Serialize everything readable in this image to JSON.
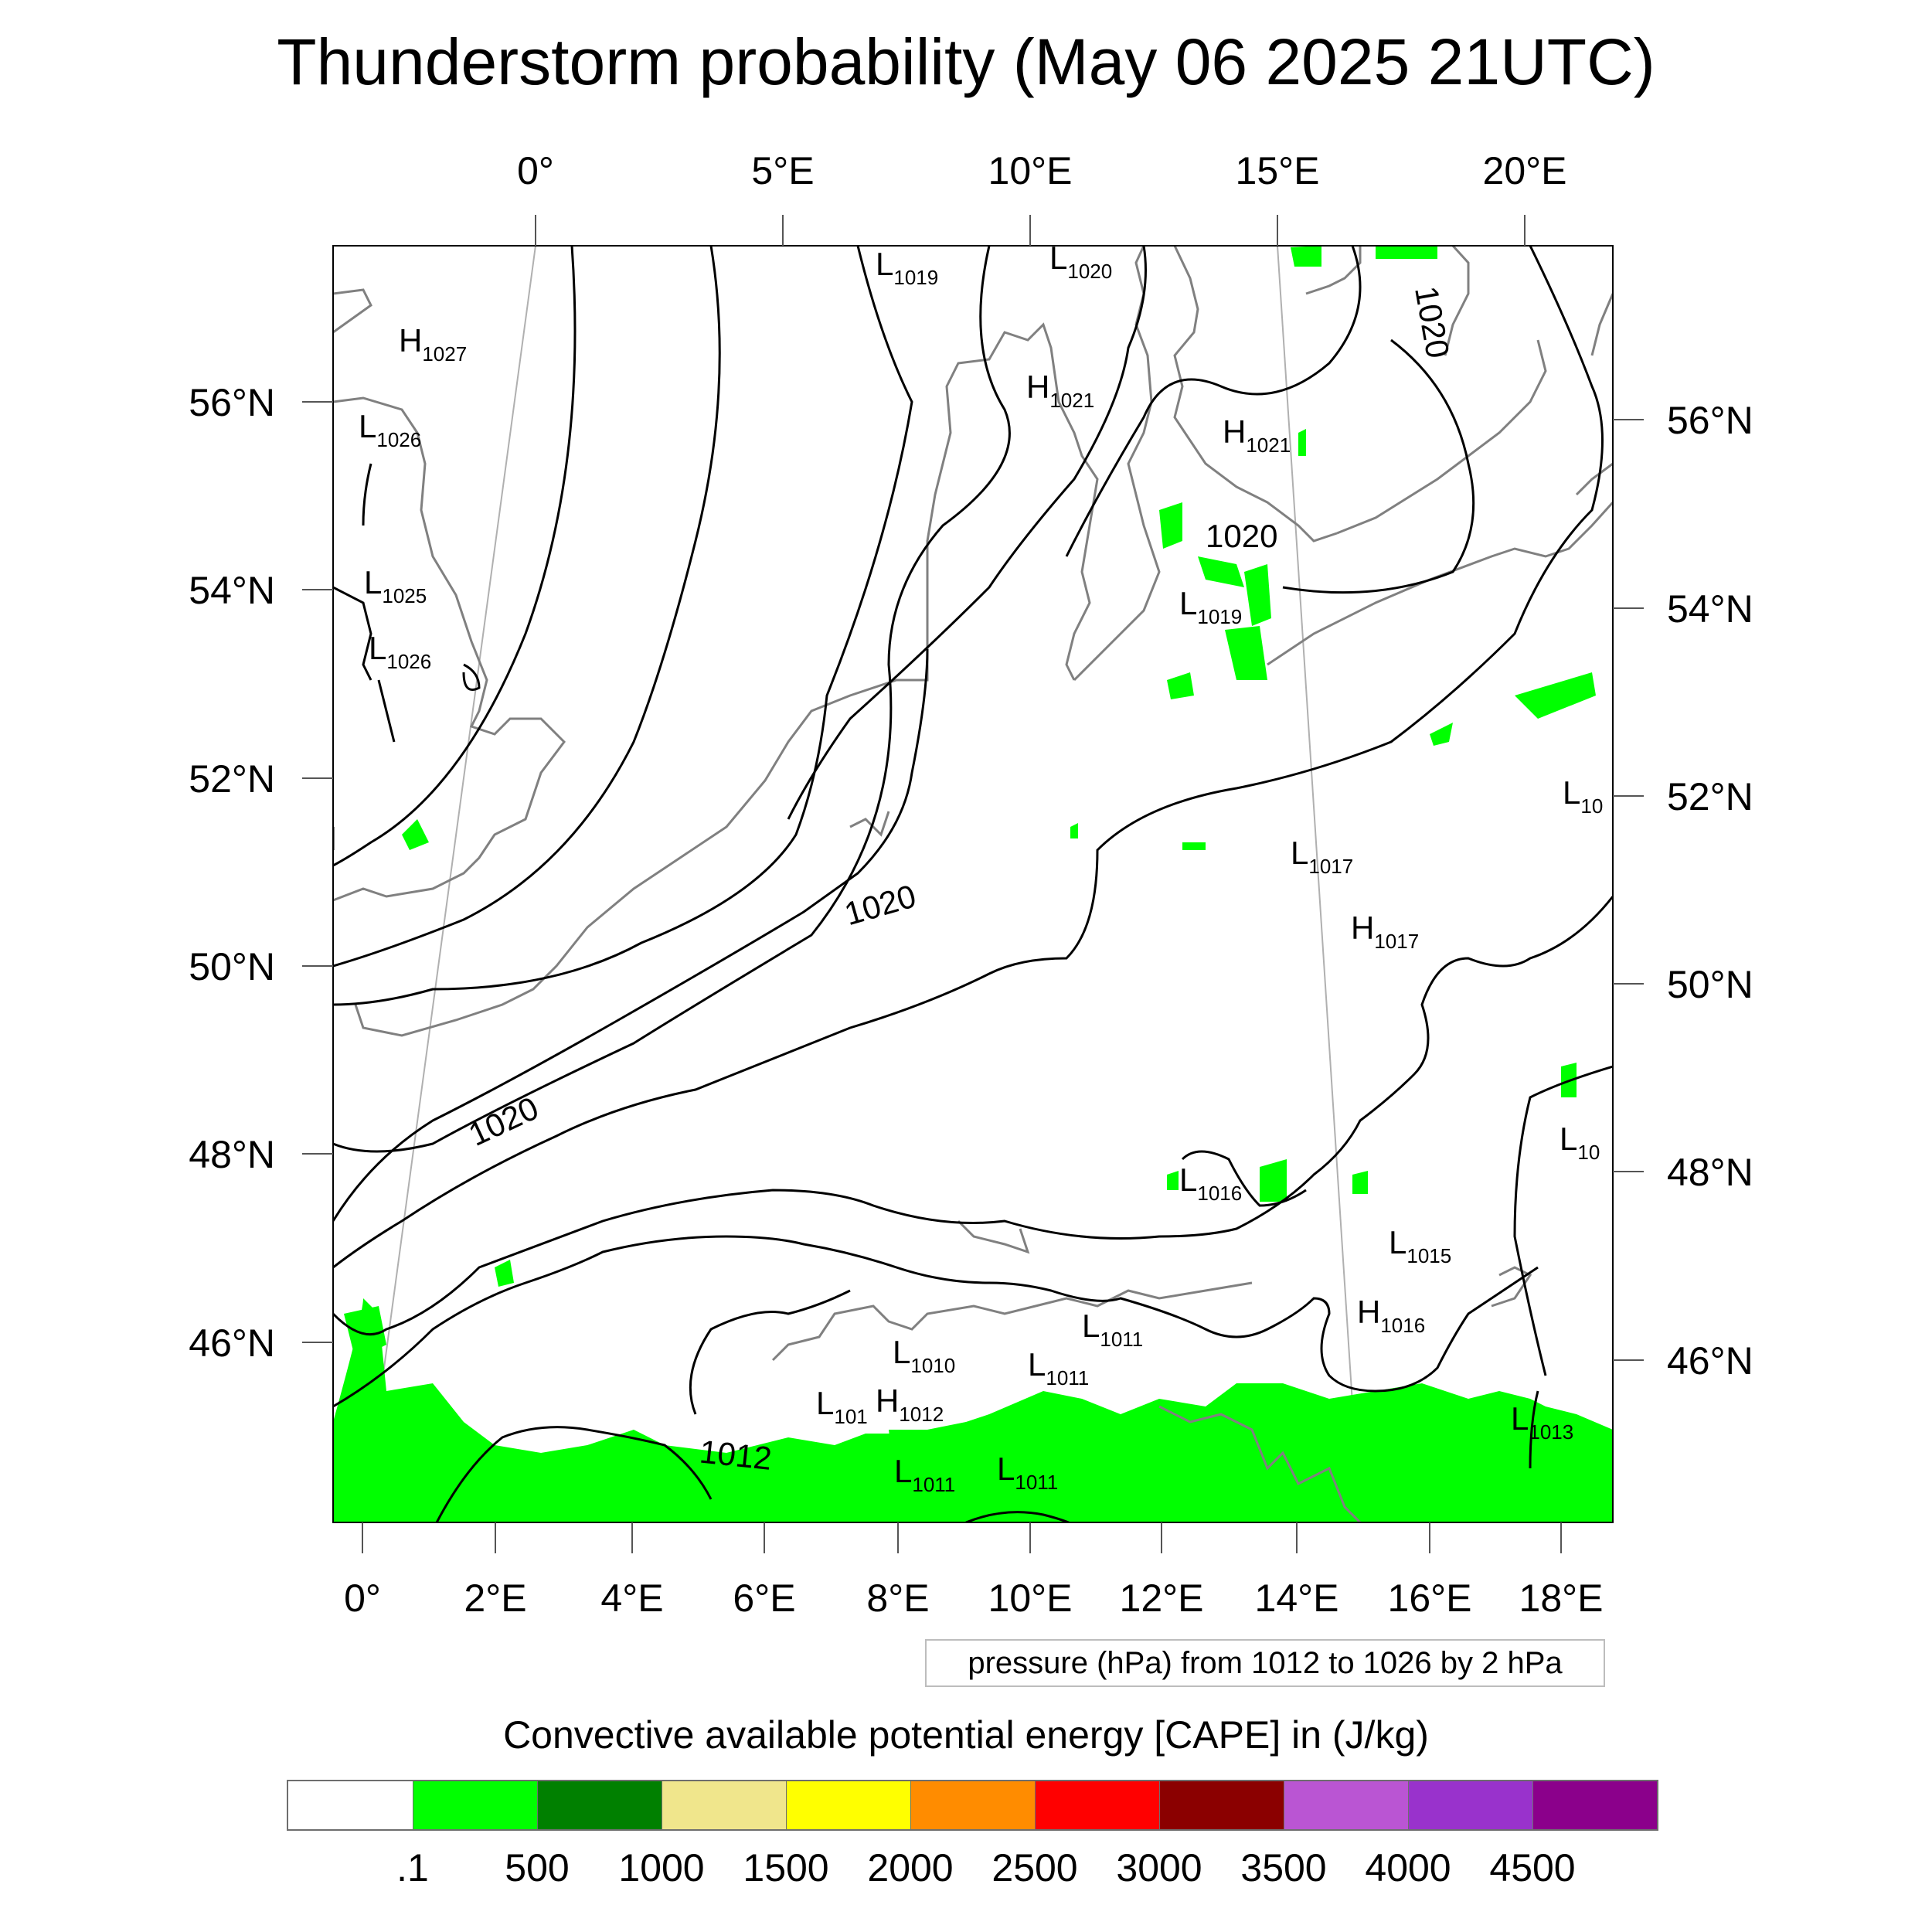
{
  "title": "Thunderstorm probability (May 06 2025 21UTC)",
  "map": {
    "top_lon_labels": [
      "0°",
      "5°E",
      "10°E",
      "15°E",
      "20°E"
    ],
    "bottom_lon_labels": [
      "0°",
      "2°E",
      "4°E",
      "6°E",
      "8°E",
      "10°E",
      "12°E",
      "14°E",
      "16°E",
      "18°E"
    ],
    "left_lat_labels": [
      "56°N",
      "54°N",
      "52°N",
      "50°N",
      "48°N",
      "46°N"
    ],
    "right_lat_labels": [
      "56°N",
      "54°N",
      "52°N",
      "50°N",
      "48°N",
      "46°N"
    ],
    "isobar_labels": [
      "1020",
      "1020",
      "1020",
      "1020",
      "1012"
    ],
    "pressure_centers": [
      {
        "type": "L",
        "value": "1019"
      },
      {
        "type": "L",
        "value": "1020"
      },
      {
        "type": "H",
        "value": "1027"
      },
      {
        "type": "L",
        "value": "1026"
      },
      {
        "type": "H",
        "value": "1021"
      },
      {
        "type": "H",
        "value": "1021"
      },
      {
        "type": "L",
        "value": "1025"
      },
      {
        "type": "L",
        "value": "1026"
      },
      {
        "type": "L",
        "value": "1019"
      },
      {
        "type": "L",
        "value": "10"
      },
      {
        "type": "L",
        "value": "1017"
      },
      {
        "type": "H",
        "value": "1017"
      },
      {
        "type": "L",
        "value": "10"
      },
      {
        "type": "L",
        "value": "1016"
      },
      {
        "type": "L",
        "value": "1015"
      },
      {
        "type": "H",
        "value": "1016"
      },
      {
        "type": "L",
        "value": "1011"
      },
      {
        "type": "L",
        "value": "1010"
      },
      {
        "type": "L",
        "value": "1011"
      },
      {
        "type": "L",
        "value": "101"
      },
      {
        "type": "H",
        "value": "1012"
      },
      {
        "type": "L",
        "value": "1013"
      },
      {
        "type": "L",
        "value": "1011"
      },
      {
        "type": "L",
        "value": "1011"
      }
    ],
    "colors": {
      "coastline": "#808080",
      "isobar": "#000000",
      "cape_low": "#00ff00"
    }
  },
  "pressure_note": "pressure (hPa) from 1012 to 1026 by 2 hPa",
  "colorbar": {
    "title": "Convective available potential energy [CAPE] in (J/kg)",
    "colors": [
      "#ffffff",
      "#00ff00",
      "#008000",
      "#f0e68c",
      "#ffff00",
      "#ff8c00",
      "#ff0000",
      "#8b0000",
      "#ba55d3",
      "#9932cc",
      "#8b008b"
    ],
    "tick_labels": [
      ".1",
      "500",
      "1000",
      "1500",
      "2000",
      "2500",
      "3000",
      "3500",
      "4000",
      "4500"
    ]
  }
}
